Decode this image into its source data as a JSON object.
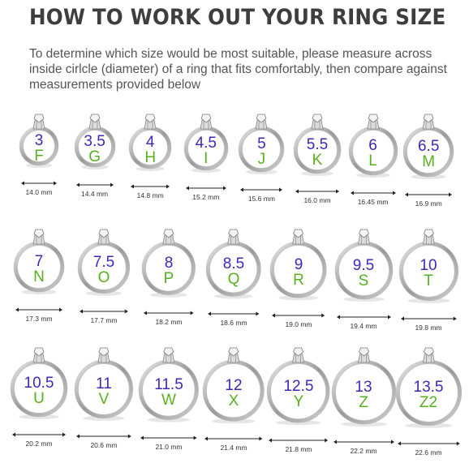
{
  "title": "HOW TO WORK OUT YOUR RING SIZE",
  "intro": "To determine which size would be most suitable, please measure across inside cirlcle (diameter) of a ring that fits comfortably, then compare against measurements provided below",
  "colors": {
    "number": "#3d28b8",
    "letter": "#58b020",
    "band": "#9a9a9a"
  },
  "icon": "ring-with-diamond-icon",
  "rows": [
    [
      {
        "num": "3",
        "letter": "F",
        "mm": "14.0 mm"
      },
      {
        "num": "3.5",
        "letter": "G",
        "mm": "14.4 mm"
      },
      {
        "num": "4",
        "letter": "H",
        "mm": "14.8 mm"
      },
      {
        "num": "4.5",
        "letter": "I",
        "mm": "15.2 mm"
      },
      {
        "num": "5",
        "letter": "J",
        "mm": "15.6 mm"
      },
      {
        "num": "5.5",
        "letter": "K",
        "mm": "16.0 mm"
      },
      {
        "num": "6",
        "letter": "L",
        "mm": "16.45 mm"
      },
      {
        "num": "6.5",
        "letter": "M",
        "mm": "16.9 mm"
      }
    ],
    [
      {
        "num": "7",
        "letter": "N",
        "mm": "17.3 mm"
      },
      {
        "num": "7.5",
        "letter": "O",
        "mm": "17.7 mm"
      },
      {
        "num": "8",
        "letter": "P",
        "mm": "18.2 mm"
      },
      {
        "num": "8.5",
        "letter": "Q",
        "mm": "18.6 mm"
      },
      {
        "num": "9",
        "letter": "R",
        "mm": "19.0 mm"
      },
      {
        "num": "9.5",
        "letter": "S",
        "mm": "19.4 mm"
      },
      {
        "num": "10",
        "letter": "T",
        "mm": "19.8 mm"
      }
    ],
    [
      {
        "num": "10.5",
        "letter": "U",
        "mm": "20.2 mm"
      },
      {
        "num": "11",
        "letter": "V",
        "mm": "20.6 mm"
      },
      {
        "num": "11.5",
        "letter": "W",
        "mm": "21.0 mm"
      },
      {
        "num": "12",
        "letter": "X",
        "mm": "21.4 mm"
      },
      {
        "num": "12.5",
        "letter": "Y",
        "mm": "21.8 mm"
      },
      {
        "num": "13",
        "letter": "Z",
        "mm": "22.2 mm"
      },
      {
        "num": "13.5",
        "letter": "Z2",
        "mm": "22.6 mm"
      }
    ]
  ]
}
